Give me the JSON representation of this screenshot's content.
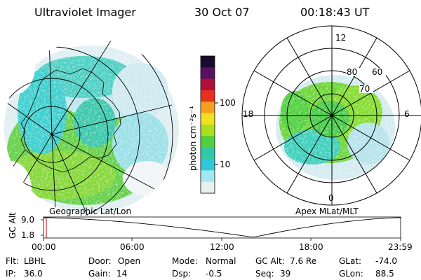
{
  "header": {
    "instrument": "Ultraviolet Imager",
    "date": "30 Oct 07",
    "time": "00:18:43 UT"
  },
  "left_panel": {
    "label": "Geographic Lat/Lon"
  },
  "right_panel": {
    "label": "Apex MLat/MLT",
    "lat_labels": [
      "80",
      "70",
      "60"
    ],
    "mlt_labels": {
      "top": "12",
      "bottom": "0",
      "left": "18",
      "right": "6"
    }
  },
  "colorbar": {
    "unit_label": "photon cm⁻²s⁻¹",
    "ticks": [
      "100",
      "10"
    ],
    "colors": [
      "#1a0a2e",
      "#5a1060",
      "#b0103a",
      "#e83020",
      "#f5a020",
      "#f0e020",
      "#a8e020",
      "#50d040",
      "#30c8a8",
      "#30c8d8",
      "#a0e8f0",
      "#e8f0f0"
    ]
  },
  "timeline": {
    "axis_label": "GC Alt",
    "y_ticks": [
      "9.0",
      "1.8"
    ],
    "x_ticks": [
      "00:00",
      "06:00",
      "12:00",
      "18:00",
      "23:59"
    ]
  },
  "info": {
    "filter": {
      "label": "Flt:",
      "value": "LBHL"
    },
    "ip": {
      "label": "IP:",
      "value": "36.0"
    },
    "door": {
      "label": "Door:",
      "value": "Open"
    },
    "gain": {
      "label": "Gain:",
      "value": "14"
    },
    "mode": {
      "label": "Mode:",
      "value": "Normal"
    },
    "dsp": {
      "label": "Dsp:",
      "value": "-0.5"
    },
    "gc_alt": {
      "label": "GC Alt:",
      "value": "7.6 Re"
    },
    "seq": {
      "label": "Seq:",
      "value": "39"
    },
    "glat": {
      "label": "GLat:",
      "value": "-74.0"
    },
    "glon": {
      "label": "GLon:",
      "value": "88.5"
    }
  }
}
